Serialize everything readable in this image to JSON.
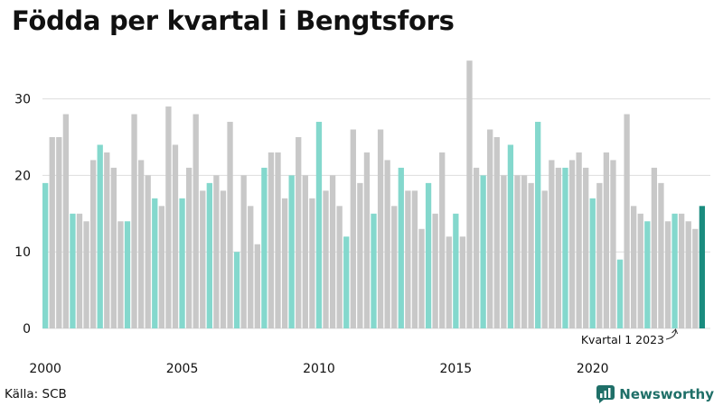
{
  "title": "Födda per kvartal i Bengtsfors",
  "source": "Källa: SCB",
  "brand": "Newsworthy",
  "colors": {
    "gray": "#c8c8c8",
    "teal": "#84d8cd",
    "highlight": "#1a8c7f",
    "brand": "#1f6f68",
    "grid": "#dddddd"
  },
  "chart_data": {
    "type": "bar",
    "x_start": "2000 Q1",
    "xtick_labels": [
      "2000",
      "2005",
      "2010",
      "2015",
      "2020"
    ],
    "xtick_index": [
      0,
      20,
      40,
      60,
      80
    ],
    "yticks": [
      0,
      10,
      20,
      30
    ],
    "ylim": [
      0,
      35
    ],
    "values": [
      19,
      25,
      25,
      28,
      15,
      15,
      14,
      22,
      24,
      23,
      21,
      14,
      14,
      28,
      22,
      20,
      17,
      16,
      29,
      24,
      17,
      21,
      28,
      18,
      19,
      20,
      18,
      27,
      10,
      20,
      16,
      11,
      21,
      23,
      23,
      17,
      20,
      25,
      20,
      17,
      27,
      18,
      20,
      16,
      12,
      26,
      19,
      23,
      15,
      26,
      22,
      16,
      21,
      18,
      18,
      13,
      19,
      15,
      23,
      12,
      15,
      12,
      35,
      21,
      20,
      26,
      25,
      20,
      24,
      20,
      20,
      19,
      27,
      18,
      22,
      21,
      21,
      22,
      23,
      21,
      17,
      19,
      23,
      22,
      9,
      28,
      16,
      15,
      14,
      21,
      19,
      14,
      15,
      15,
      14,
      13,
      16
    ],
    "annotation": "Kvartal 1 2023"
  }
}
